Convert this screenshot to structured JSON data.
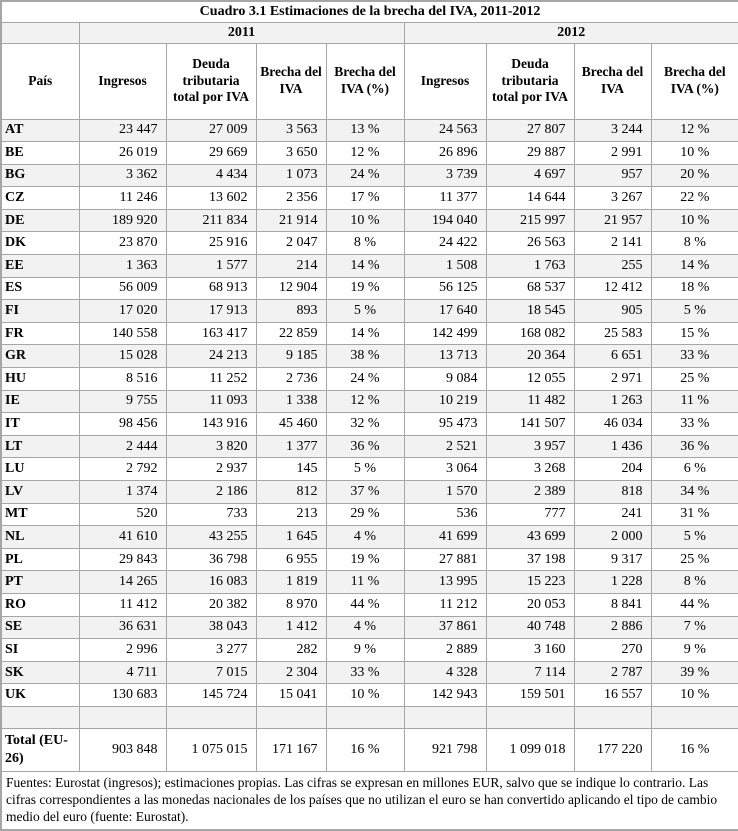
{
  "table": {
    "title": "Cuadro 3.1 Estimaciones de la brecha del IVA, 2011-2012",
    "year_groups": [
      "2011",
      "2012"
    ],
    "columns": [
      "País",
      "Ingresos",
      "Deuda tributaria total por IVA",
      "Brecha del IVA",
      "Brecha del IVA (%)",
      "Ingresos",
      "Deuda tributaria total por IVA",
      "Brecha del IVA",
      "Brecha del IVA (%)"
    ],
    "rows": [
      {
        "code": "AT",
        "values": [
          "23 447",
          "27 009",
          "3 563",
          "13 %",
          "24 563",
          "27 807",
          "3 244",
          "12 %"
        ]
      },
      {
        "code": "BE",
        "values": [
          "26 019",
          "29 669",
          "3 650",
          "12 %",
          "26 896",
          "29 887",
          "2 991",
          "10 %"
        ]
      },
      {
        "code": "BG",
        "values": [
          "3 362",
          "4 434",
          "1 073",
          "24 %",
          "3 739",
          "4 697",
          "957",
          "20 %"
        ]
      },
      {
        "code": "CZ",
        "values": [
          "11 246",
          "13 602",
          "2 356",
          "17 %",
          "11 377",
          "14 644",
          "3 267",
          "22 %"
        ]
      },
      {
        "code": "DE",
        "values": [
          "189 920",
          "211 834",
          "21 914",
          "10 %",
          "194 040",
          "215 997",
          "21 957",
          "10 %"
        ]
      },
      {
        "code": "DK",
        "values": [
          "23 870",
          "25 916",
          "2 047",
          "8 %",
          "24 422",
          "26 563",
          "2 141",
          "8 %"
        ]
      },
      {
        "code": "EE",
        "values": [
          "1 363",
          "1 577",
          "214",
          "14 %",
          "1 508",
          "1 763",
          "255",
          "14 %"
        ]
      },
      {
        "code": "ES",
        "values": [
          "56 009",
          "68 913",
          "12 904",
          "19 %",
          "56 125",
          "68 537",
          "12 412",
          "18 %"
        ]
      },
      {
        "code": "FI",
        "values": [
          "17 020",
          "17 913",
          "893",
          "5 %",
          "17 640",
          "18 545",
          "905",
          "5 %"
        ]
      },
      {
        "code": "FR",
        "values": [
          "140 558",
          "163 417",
          "22 859",
          "14 %",
          "142 499",
          "168 082",
          "25 583",
          "15 %"
        ]
      },
      {
        "code": "GR",
        "values": [
          "15 028",
          "24 213",
          "9 185",
          "38 %",
          "13 713",
          "20 364",
          "6 651",
          "33 %"
        ]
      },
      {
        "code": "HU",
        "values": [
          "8 516",
          "11 252",
          "2 736",
          "24 %",
          "9 084",
          "12 055",
          "2 971",
          "25 %"
        ]
      },
      {
        "code": "IE",
        "values": [
          "9 755",
          "11 093",
          "1 338",
          "12 %",
          "10 219",
          "11 482",
          "1 263",
          "11 %"
        ]
      },
      {
        "code": "IT",
        "values": [
          "98 456",
          "143 916",
          "45 460",
          "32 %",
          "95 473",
          "141 507",
          "46 034",
          "33 %"
        ]
      },
      {
        "code": "LT",
        "values": [
          "2 444",
          "3 820",
          "1 377",
          "36 %",
          "2 521",
          "3 957",
          "1 436",
          "36 %"
        ]
      },
      {
        "code": "LU",
        "values": [
          "2 792",
          "2 937",
          "145",
          "5 %",
          "3 064",
          "3 268",
          "204",
          "6 %"
        ]
      },
      {
        "code": "LV",
        "values": [
          "1 374",
          "2 186",
          "812",
          "37 %",
          "1 570",
          "2 389",
          "818",
          "34 %"
        ]
      },
      {
        "code": "MT",
        "values": [
          "520",
          "733",
          "213",
          "29 %",
          "536",
          "777",
          "241",
          "31 %"
        ]
      },
      {
        "code": "NL",
        "values": [
          "41 610",
          "43 255",
          "1 645",
          "4 %",
          "41 699",
          "43 699",
          "2 000",
          "5 %"
        ]
      },
      {
        "code": "PL",
        "values": [
          "29 843",
          "36 798",
          "6 955",
          "19 %",
          "27 881",
          "37 198",
          "9 317",
          "25 %"
        ]
      },
      {
        "code": "PT",
        "values": [
          "14 265",
          "16 083",
          "1 819",
          "11 %",
          "13 995",
          "15 223",
          "1 228",
          "8 %"
        ]
      },
      {
        "code": "RO",
        "values": [
          "11 412",
          "20 382",
          "8 970",
          "44 %",
          "11 212",
          "20 053",
          "8 841",
          "44 %"
        ]
      },
      {
        "code": "SE",
        "values": [
          "36 631",
          "38 043",
          "1 412",
          "4 %",
          "37 861",
          "40 748",
          "2 886",
          "7 %"
        ]
      },
      {
        "code": "SI",
        "values": [
          "2 996",
          "3 277",
          "282",
          "9 %",
          "2 889",
          "3 160",
          "270",
          "9 %"
        ]
      },
      {
        "code": "SK",
        "values": [
          "4 711",
          "7 015",
          "2 304",
          "33 %",
          "4 328",
          "7 114",
          "2 787",
          "39 %"
        ]
      },
      {
        "code": "UK",
        "values": [
          "130 683",
          "145 724",
          "15 041",
          "10 %",
          "142 943",
          "159 501",
          "16 557",
          "10 %"
        ]
      }
    ],
    "total": {
      "label": "Total (EU-26)",
      "values": [
        "903 848",
        "1 075 015",
        "171 167",
        "16 %",
        "921 798",
        "1 099 018",
        "177 220",
        "16 %"
      ]
    },
    "footer": "Fuentes: Eurostat (ingresos); estimaciones propias. Las cifras se expresan en millones EUR, salvo que se indique lo contrario. Las cifras correspondientes a las monedas nacionales de los países que no utilizan el euro se han convertido aplicando el tipo de cambio medio del euro (fuente: Eurostat).",
    "colors": {
      "shaded_row": "#f2f2f2",
      "border": "#a6a6a6",
      "text": "#000000",
      "background": "#ffffff"
    }
  }
}
